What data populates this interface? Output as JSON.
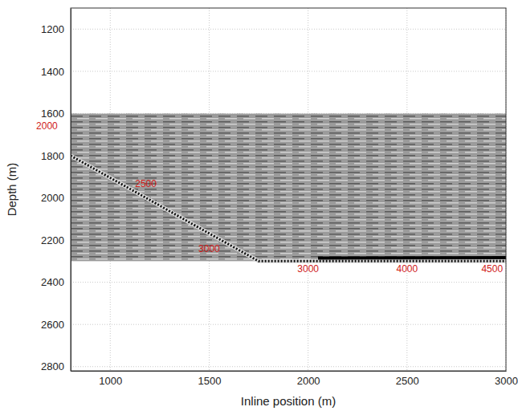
{
  "chart_data": {
    "type": "line",
    "x_label": "Inline position (m)",
    "y_label": "Depth (m)",
    "xlim": [
      800,
      3000
    ],
    "ylim": [
      1100,
      2820
    ],
    "xticks": [
      1000,
      1500,
      2000,
      2500,
      3000
    ],
    "yticks": [
      1200,
      1400,
      1600,
      1800,
      2000,
      2200,
      2400,
      2600,
      2800
    ],
    "grid": true,
    "section_x": [
      800,
      3000
    ],
    "section_depth": [
      1600,
      2300
    ],
    "series": [
      {
        "color": "#111111",
        "line_style": "dotted",
        "x": [
          800,
          1000,
          1200,
          1400,
          1600,
          1750,
          2000,
          2500,
          3000
        ],
        "values": [
          1800,
          1905,
          2010,
          2116,
          2221,
          2300,
          2300,
          2300,
          2300
        ]
      },
      {
        "color": "#000000",
        "line_style": "solid",
        "x": [
          2050,
          2500,
          3000
        ],
        "values": [
          2285,
          2284,
          2283
        ]
      }
    ],
    "annotations": [
      {
        "text": "2000",
        "x": 680,
        "y": 1660
      },
      {
        "text": "2500",
        "x": 1180,
        "y": 1935
      },
      {
        "text": "3000",
        "x": 1500,
        "y": 2240
      },
      {
        "text": "3000",
        "x": 2000,
        "y": 2335
      },
      {
        "text": "4000",
        "x": 2500,
        "y": 2335
      },
      {
        "text": "4500",
        "x": 2930,
        "y": 2335
      }
    ]
  }
}
